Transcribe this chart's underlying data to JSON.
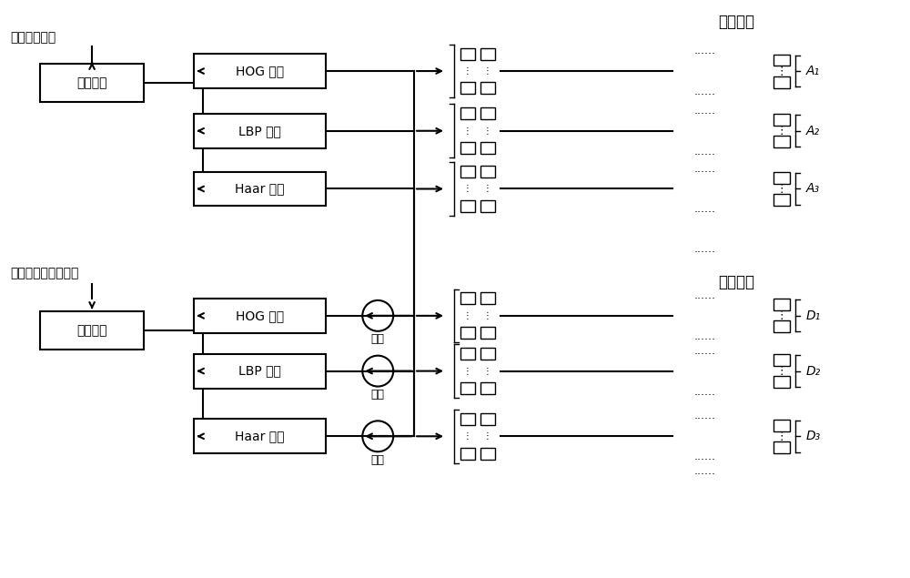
{
  "bg_color": "#ffffff",
  "text_color": "#000000",
  "top_label1": "普通人脸图像",
  "top_label2": "特定表情的人脸图像",
  "feat_extract": "特征提取",
  "hog": "HOG 特征",
  "lbp": "LBP 特征",
  "haar": "Haar 特征",
  "minus": "减去",
  "label_dict": "标称字典",
  "feature_dict": "特性字典",
  "A1": "A₁",
  "A2": "A₂",
  "A3": "A₃",
  "D1": "D₁",
  "D2": "D₂",
  "D3": "D₃",
  "dots": "......",
  "vdots": "⋮"
}
